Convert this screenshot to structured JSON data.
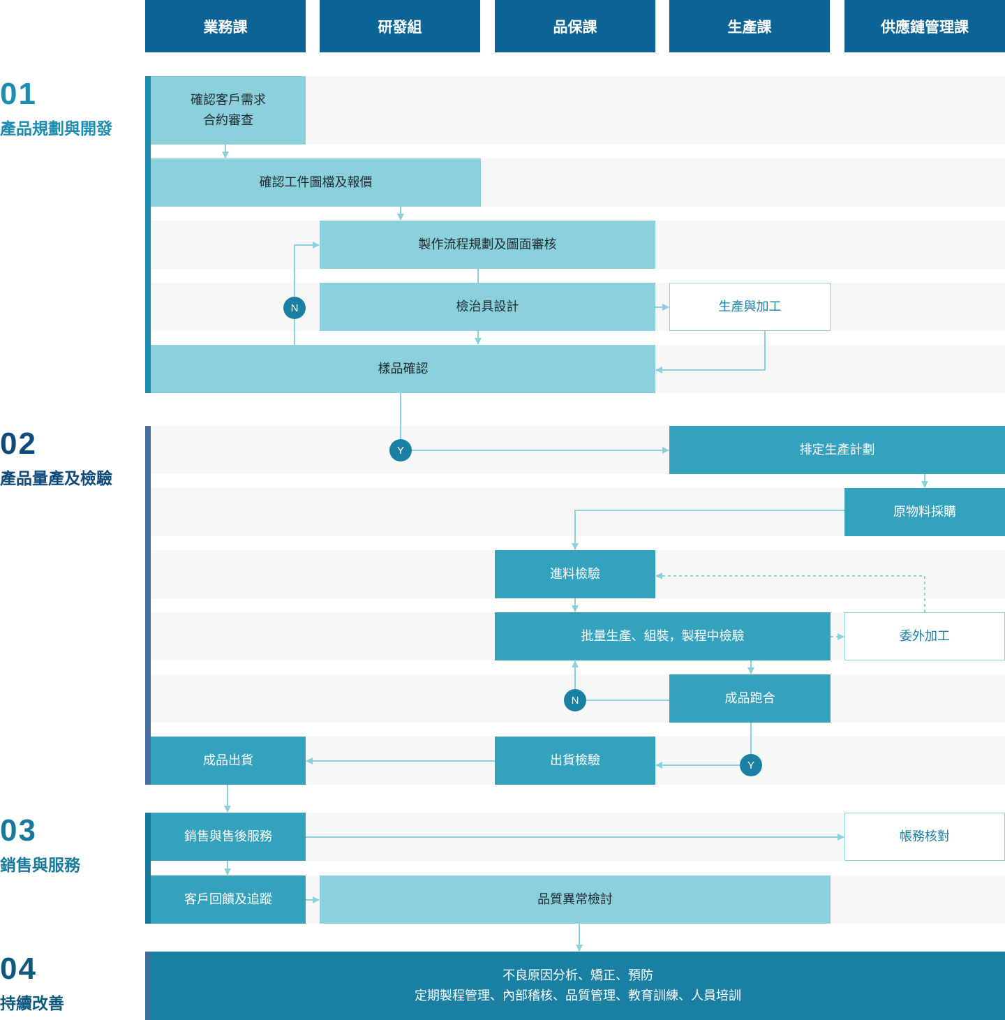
{
  "columns": [
    "業務課",
    "研發組",
    "品保課",
    "生產課",
    "供應鏈管理課"
  ],
  "stages": [
    {
      "number": "01",
      "title": "產品規劃與開發"
    },
    {
      "number": "02",
      "title": "產品量產及檢驗"
    },
    {
      "number": "03",
      "title": "銷售與服務"
    },
    {
      "number": "04",
      "title": "持續改善"
    }
  ],
  "boxes": {
    "confirm_needs": {
      "line1": "確認客戶需求",
      "line2": "合約審查"
    },
    "confirm_drawings": "確認工件圖檔及報價",
    "process_planning": "製作流程規劃及圖面審核",
    "jig_design": "檢治具設計",
    "production_processing": "生產與加工",
    "sample_confirm": "樣品確認",
    "schedule_plan": "排定生產計劃",
    "material_purchase": "原物料採購",
    "incoming_inspection": "進料檢驗",
    "mass_production": "批量生產、組裝，製程中檢驗",
    "outsourcing": "委外加工",
    "product_fitting": "成品跑合",
    "shipping_inspection": "出貨檢驗",
    "product_shipping": "成品出貨",
    "sales_service": "銷售與售後服務",
    "account_check": "帳務核對",
    "customer_feedback": "客戶回饋及追蹤",
    "quality_review": "品質異常檢討",
    "continuous": {
      "line1": "不良原因分析、矯正、預防",
      "line2": "定期製程管理、內部稽核、品質管理、教育訓練、人員培訓"
    }
  },
  "decisions": {
    "no": "N",
    "yes": "Y"
  },
  "colors": {
    "header": "#0c6496",
    "light": "#8ad1db",
    "mid": "#35a2bd",
    "dark": "#1980a4",
    "band": "#f7f7f7",
    "arrow": "#8ad1db"
  }
}
